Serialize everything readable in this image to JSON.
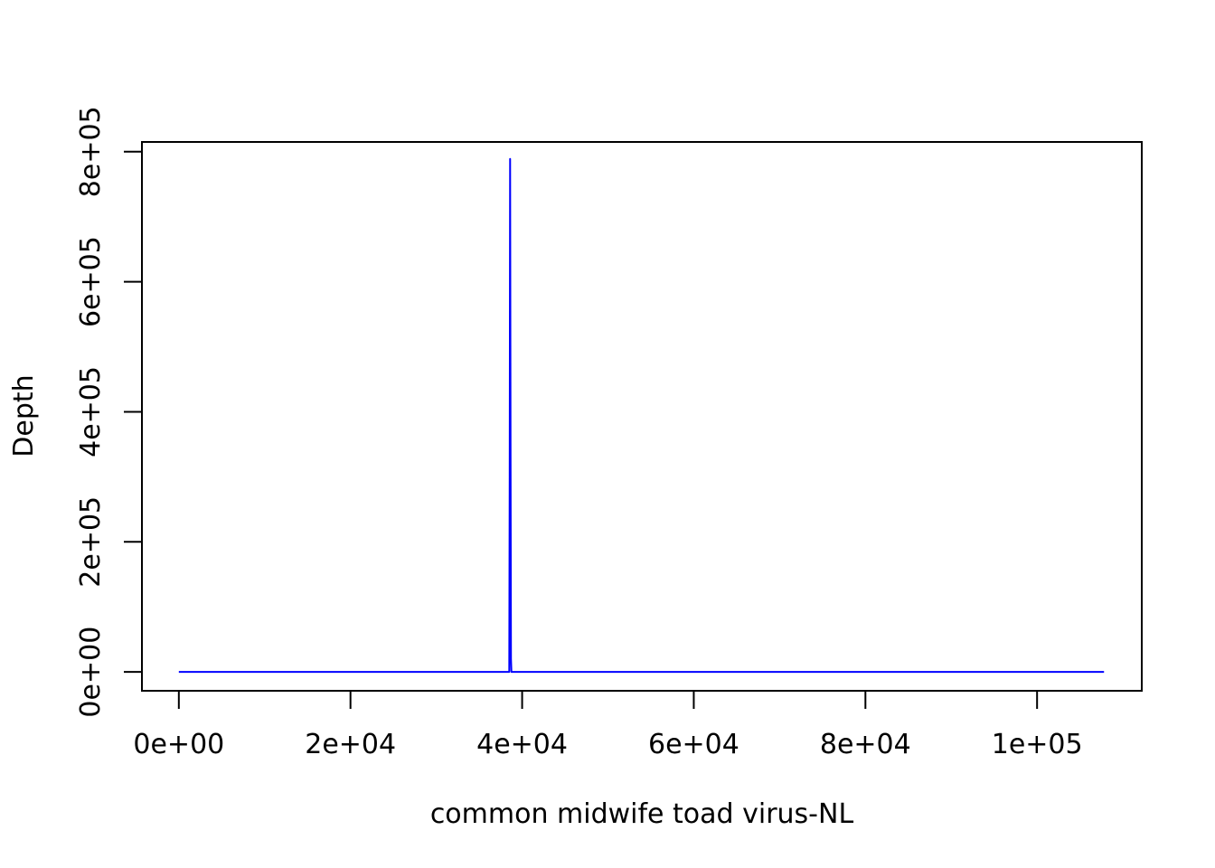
{
  "chart_data": {
    "type": "line",
    "title": "",
    "xlabel": "common midwife toad virus-NL",
    "ylabel": "Depth",
    "xlim": [
      -4300,
      112200
    ],
    "ylim": [
      -29000,
      815000
    ],
    "x_ticks": [
      {
        "value": 0,
        "label": "0e+00"
      },
      {
        "value": 20000,
        "label": "2e+04"
      },
      {
        "value": 40000,
        "label": "4e+04"
      },
      {
        "value": 60000,
        "label": "6e+04"
      },
      {
        "value": 80000,
        "label": "8e+04"
      },
      {
        "value": 100000,
        "label": "1e+05"
      }
    ],
    "y_ticks": [
      {
        "value": 0,
        "label": "0e+00"
      },
      {
        "value": 200000,
        "label": "2e+05"
      },
      {
        "value": 400000,
        "label": "4e+05"
      },
      {
        "value": 600000,
        "label": "6e+05"
      },
      {
        "value": 800000,
        "label": "8e+05"
      }
    ],
    "grid": false,
    "series": [
      {
        "color": "#0000ff",
        "x": [
          0,
          38500,
          38550,
          38600,
          38650,
          38700,
          38750,
          107800
        ],
        "y": [
          0,
          0,
          300000,
          789000,
          350000,
          20000,
          0,
          0
        ]
      }
    ]
  }
}
